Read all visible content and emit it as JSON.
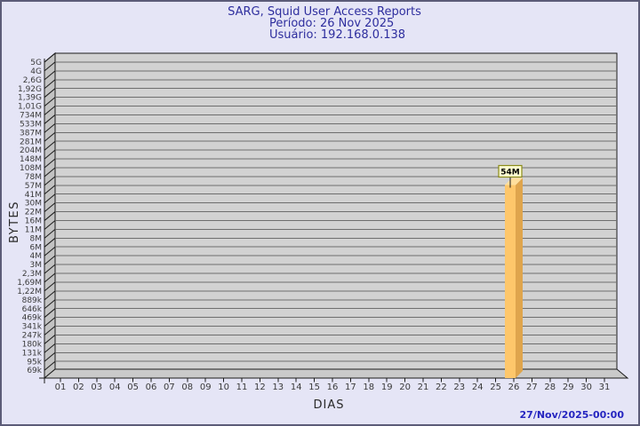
{
  "header": {
    "title": "SARG, Squid User Access Reports",
    "period_line": "Período: 26 Nov 2025",
    "user_line": "Usuário: 192.168.0.138"
  },
  "footer": {
    "generated": "27/Nov/2025-00:00"
  },
  "chart_data": {
    "type": "bar",
    "title": "SARG, Squid User Access Reports",
    "subtitle_period": "Período: 26 Nov 2025",
    "subtitle_user": "Usuário: 192.168.0.138",
    "xlabel": "DIAS",
    "ylabel": "BYTES",
    "x_tick_labels": [
      "01",
      "02",
      "03",
      "04",
      "05",
      "06",
      "07",
      "08",
      "09",
      "10",
      "11",
      "12",
      "13",
      "14",
      "15",
      "16",
      "17",
      "18",
      "19",
      "20",
      "21",
      "22",
      "23",
      "24",
      "25",
      "26",
      "27",
      "28",
      "29",
      "30",
      "31"
    ],
    "y_axis": {
      "scale": "log",
      "tick_labels": [
        "5G",
        "4G",
        "2,6G",
        "1,92G",
        "1,39G",
        "1,01G",
        "734M",
        "533M",
        "387M",
        "281M",
        "204M",
        "148M",
        "108M",
        "78M",
        "57M",
        "41M",
        "30M",
        "22M",
        "16M",
        "11M",
        "8M",
        "6M",
        "4M",
        "3M",
        "2,3M",
        "1,69M",
        "1,22M",
        "889k",
        "646k",
        "469k",
        "341k",
        "247k",
        "180k",
        "131k",
        "95k",
        "69k"
      ]
    },
    "series": [
      {
        "name": "bytes-per-day",
        "points": [
          {
            "day": "26",
            "value_label": "54M"
          }
        ]
      }
    ],
    "grid": true,
    "legend": false,
    "style_3d": true
  },
  "colors": {
    "page_bg": "#e5e5f6",
    "page_border": "#5c5c78",
    "title_text": "#2e2e9e",
    "date_text": "#2525c0",
    "plot_bg": "#d2d2d2",
    "wall": "#c2c2c2",
    "floor": "#cacaca",
    "grid_line": "#6e6e6e",
    "outline": "#1a1a1a",
    "tick_text": "#3a3a3a",
    "axis_title_text": "#2a2a2a",
    "bar_front": "#fec76b",
    "bar_side": "#dfa54d",
    "bar_top": "#ffdf9d",
    "annotation_bg": "#ffffd0",
    "annotation_border": "#8b8b1a",
    "annotation_text": "#000000"
  }
}
